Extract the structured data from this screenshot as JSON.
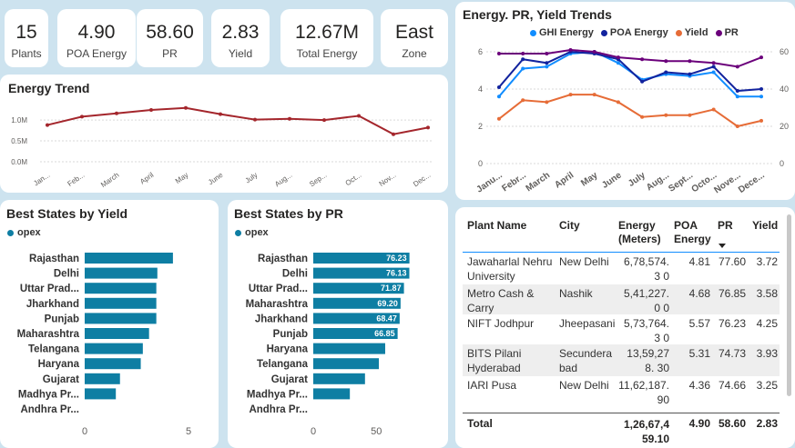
{
  "kpis": [
    {
      "value": "15",
      "label": "Plants"
    },
    {
      "value": "4.90",
      "label": "POA Energy"
    },
    {
      "value": "58.60",
      "label": "PR"
    },
    {
      "value": "2.83",
      "label": "Yield"
    },
    {
      "value": "12.67M",
      "label": "Total Energy"
    },
    {
      "value": "East",
      "label": "Zone"
    }
  ],
  "energy_trend": {
    "title": "Energy Trend",
    "chart_data": {
      "type": "line",
      "categories": [
        "Jan...",
        "Feb...",
        "March",
        "April",
        "May",
        "June",
        "July",
        "Aug...",
        "Sep...",
        "Oct...",
        "Nov...",
        "Dec..."
      ],
      "values": [
        0.88,
        1.08,
        1.16,
        1.24,
        1.29,
        1.14,
        1.01,
        1.03,
        1.0,
        1.1,
        0.66,
        0.82
      ],
      "ylim": [
        0,
        1.25
      ],
      "yticks": [
        "0.0M",
        "0.5M",
        "1.0M"
      ],
      "color": "#a4262c"
    }
  },
  "trends": {
    "title": "Energy. PR, Yield Trends",
    "legend": [
      {
        "name": "GHI Energy",
        "color": "#118dff"
      },
      {
        "name": "POA Energy",
        "color": "#12239e"
      },
      {
        "name": "Yield",
        "color": "#e66c37"
      },
      {
        "name": "PR",
        "color": "#6b007b"
      }
    ],
    "chart_data": {
      "type": "line",
      "categories": [
        "Janu...",
        "Febr...",
        "March",
        "April",
        "May",
        "June",
        "July",
        "Aug...",
        "Sept...",
        "Octo...",
        "Nove...",
        "Dece..."
      ],
      "series": [
        {
          "name": "GHI Energy",
          "axis": "left",
          "values": [
            3.6,
            5.1,
            5.2,
            5.9,
            6.0,
            5.4,
            4.5,
            4.8,
            4.7,
            4.9,
            3.6,
            3.6
          ]
        },
        {
          "name": "POA Energy",
          "axis": "left",
          "values": [
            4.1,
            5.6,
            5.4,
            6.0,
            5.9,
            5.6,
            4.4,
            4.9,
            4.8,
            5.2,
            3.9,
            4.0
          ]
        },
        {
          "name": "Yield",
          "axis": "left",
          "values": [
            2.4,
            3.4,
            3.3,
            3.7,
            3.7,
            3.3,
            2.5,
            2.6,
            2.6,
            2.9,
            2.0,
            2.3
          ]
        },
        {
          "name": "PR",
          "axis": "right",
          "values": [
            59,
            59,
            59,
            61,
            60,
            57,
            56,
            55,
            55,
            54,
            52,
            57
          ]
        }
      ],
      "ylim_left": [
        0,
        6
      ],
      "yticks_left": [
        "0",
        "2",
        "4",
        "6"
      ],
      "ylim_right": [
        0,
        60
      ],
      "yticks_right": [
        "0",
        "20",
        "40",
        "60"
      ]
    }
  },
  "yield_states": {
    "title": "Best States by Yield",
    "legend": "opex",
    "chart_data": {
      "type": "bar",
      "categories": [
        "Rajasthan",
        "Delhi",
        "Uttar Prad...",
        "Jharkhand",
        "Punjab",
        "Maharashtra",
        "Telangana",
        "Haryana",
        "Gujarat",
        "Madhya Pr...",
        "Andhra Pr..."
      ],
      "values": [
        4.25,
        3.5,
        3.45,
        3.45,
        3.45,
        3.1,
        2.8,
        2.7,
        1.7,
        1.5,
        0
      ],
      "xlim": [
        0,
        5
      ],
      "xticks": [
        "0",
        "5"
      ],
      "color": "#0e7ea3"
    }
  },
  "pr_states": {
    "title": "Best States by PR",
    "legend": "opex",
    "chart_data": {
      "type": "bar",
      "categories": [
        "Rajasthan",
        "Delhi",
        "Uttar Prad...",
        "Maharashtra",
        "Jharkhand",
        "Punjab",
        "Haryana",
        "Telangana",
        "Gujarat",
        "Madhya Pr...",
        "Andhra Pr..."
      ],
      "values": [
        76.23,
        76.13,
        71.87,
        69.2,
        68.47,
        66.85,
        57,
        52,
        41,
        29,
        0
      ],
      "labels": [
        "76.23",
        "76.13",
        "71.87",
        "69.20",
        "68.47",
        "66.85",
        "",
        "",
        "",
        "",
        ""
      ],
      "xlim": [
        0,
        83
      ],
      "xticks": [
        "0",
        "50"
      ],
      "color": "#0e7ea3"
    }
  },
  "table": {
    "headers": [
      "Plant Name",
      "City",
      "Energy (Meters)",
      "POA Energy",
      "PR",
      "Yield"
    ],
    "rows": [
      {
        "plant": "Jawaharlal Nehru University",
        "city": "New Delhi",
        "energy": "6,78,574.3 0",
        "poa": "4.81",
        "pr": "77.60",
        "yield": "3.72"
      },
      {
        "plant": "Metro Cash & Carry",
        "city": "Nashik",
        "energy": "5,41,227.0 0",
        "poa": "4.68",
        "pr": "76.85",
        "yield": "3.58"
      },
      {
        "plant": "NIFT Jodhpur",
        "city": "Jheepasani",
        "energy": "5,73,764.3 0",
        "poa": "5.57",
        "pr": "76.23",
        "yield": "4.25"
      },
      {
        "plant": "BITS Pilani Hyderabad",
        "city": "Secundera bad",
        "energy": "13,59,278. 30",
        "poa": "5.31",
        "pr": "74.73",
        "yield": "3.93"
      },
      {
        "plant": "IARI Pusa",
        "city": "New Delhi",
        "energy": "11,62,187. 90",
        "poa": "4.36",
        "pr": "74.66",
        "yield": "3.25"
      }
    ],
    "total": {
      "label": "Total",
      "energy": "1,26,67,4 59.10",
      "poa": "4.90",
      "pr": "58.60",
      "yield": "2.83"
    }
  }
}
